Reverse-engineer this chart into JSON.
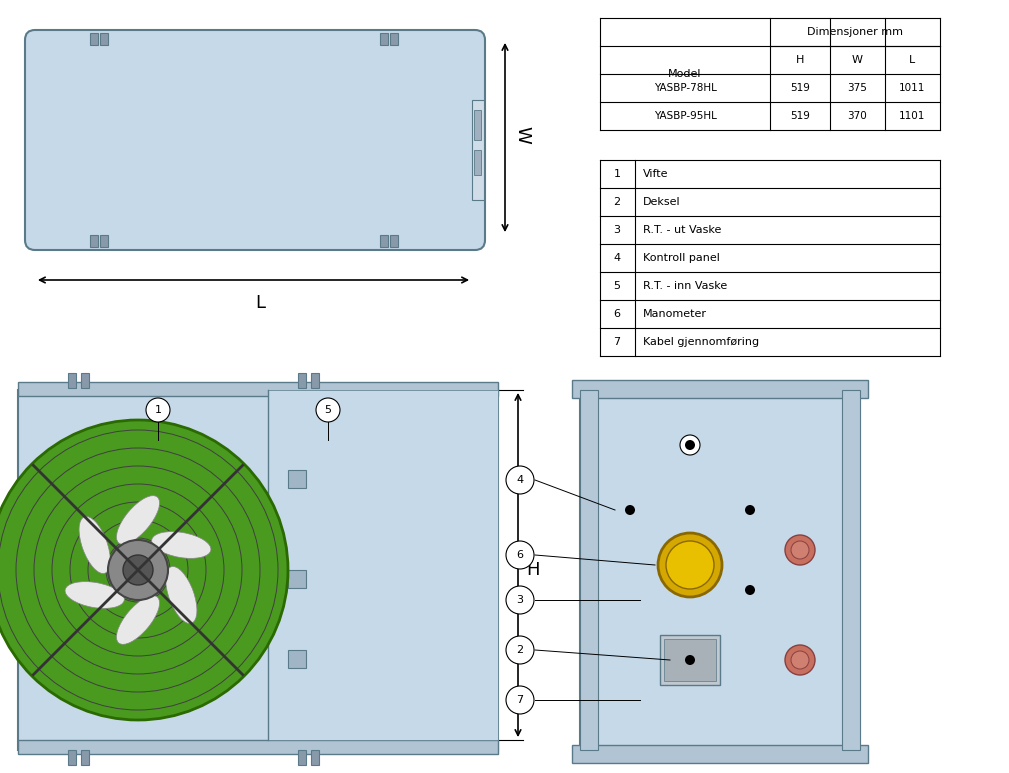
{
  "bg_color": "#ffffff",
  "unit_bg": "#c5d9e8",
  "unit_border": "#5a7a8a",
  "fan_gray": "#707070",
  "fan_dark": "#404040",
  "fan_green": "#4a9a20",
  "table1": {
    "headers": [
      "Model",
      "Dimensjoner mm",
      "",
      ""
    ],
    "subheaders": [
      "",
      "H",
      "W",
      "L"
    ],
    "rows": [
      [
        "YASBP-78HL",
        "519",
        "375",
        "1011"
      ],
      [
        "YASBP-95HL",
        "519",
        "370",
        "1101"
      ]
    ]
  },
  "table2": {
    "rows": [
      [
        "1",
        "Vifte"
      ],
      [
        "2",
        "Deksel"
      ],
      [
        "3",
        "R.T. - ut Vaske"
      ],
      [
        "4",
        "Kontroll panel"
      ],
      [
        "5",
        "R.T. - inn Vaske"
      ],
      [
        "6",
        "Manometer"
      ],
      [
        "7",
        "Kabel gjennomføring"
      ]
    ]
  },
  "dim_color": "#000000",
  "callout_color": "#000000"
}
